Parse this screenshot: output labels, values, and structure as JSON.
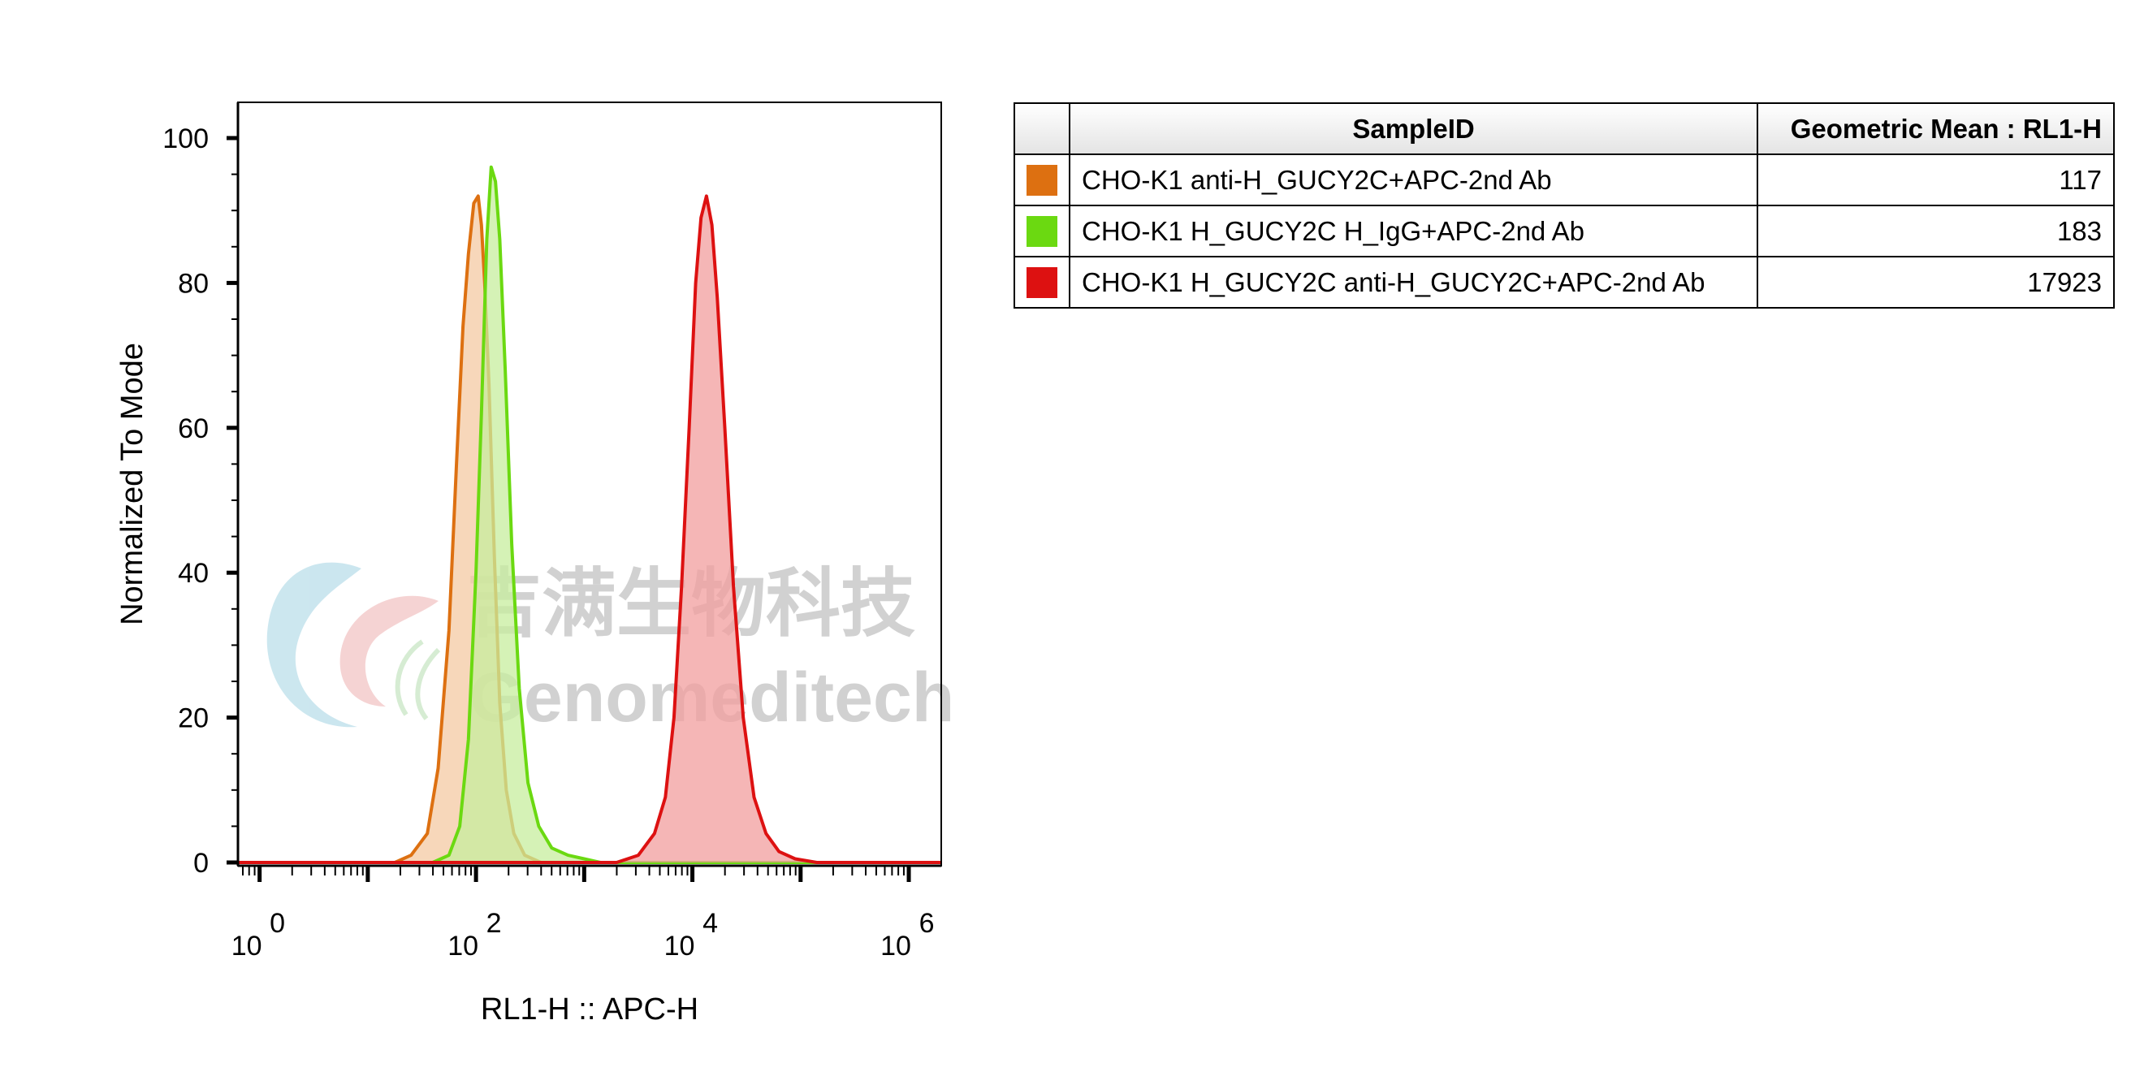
{
  "colors": {
    "orange": "#dd7011",
    "green": "#6bd911",
    "red": "#dd1111"
  },
  "watermark": {
    "cn": "吉满生物科技",
    "en": "Genomeditech"
  },
  "table": {
    "headers": {
      "sample": "SampleID",
      "value": "Geometric Mean : RL1-H"
    },
    "rows": [
      {
        "name": "CHO-K1 anti-H_GUCY2C+APC-2nd Ab",
        "value": "117",
        "color": "#dd7011"
      },
      {
        "name": "CHO-K1 H_GUCY2C H_IgG+APC-2nd Ab",
        "value": "183",
        "color": "#6bd911"
      },
      {
        "name": "CHO-K1 H_GUCY2C anti-H_GUCY2C+APC-2nd Ab",
        "value": "17923",
        "color": "#dd1111"
      }
    ]
  },
  "chart_data": {
    "type": "area",
    "xlabel": "RL1-H :: APC-H",
    "ylabel": "Normalized To Mode",
    "x_scale": "log10",
    "xlim": [
      -0.2,
      6.3
    ],
    "ylim": [
      0,
      100
    ],
    "grid": false,
    "x_ticks": [
      {
        "base": "10",
        "exp": "0",
        "value": 0
      },
      {
        "base": "10",
        "exp": "2",
        "value": 2
      },
      {
        "base": "10",
        "exp": "4",
        "value": 4
      },
      {
        "base": "10",
        "exp": "6",
        "value": 6
      }
    ],
    "y_ticks": [
      "0",
      "20",
      "40",
      "60",
      "80",
      "100"
    ],
    "series": [
      {
        "name": "CHO-K1 anti-H_GUCY2C+APC-2nd Ab",
        "color": "#dd7011",
        "fill": "#f4c9a3",
        "x": [
          -0.2,
          1.25,
          1.4,
          1.55,
          1.65,
          1.75,
          1.82,
          1.88,
          1.93,
          1.98,
          2.02,
          2.05,
          2.08,
          2.12,
          2.17,
          2.22,
          2.28,
          2.35,
          2.45,
          2.6,
          6.3
        ],
        "y": [
          0,
          0,
          1,
          4,
          13,
          32,
          55,
          74,
          84,
          91,
          92,
          88,
          80,
          66,
          42,
          22,
          10,
          4,
          1,
          0,
          0
        ]
      },
      {
        "name": "CHO-K1 H_GUCY2C H_IgG+APC-2nd Ab",
        "color": "#6bd911",
        "fill": "#c7ed9d",
        "x": [
          -0.2,
          1.6,
          1.75,
          1.85,
          1.93,
          2.0,
          2.05,
          2.1,
          2.14,
          2.18,
          2.22,
          2.27,
          2.33,
          2.4,
          2.48,
          2.58,
          2.7,
          2.85,
          3.0,
          3.15,
          6.3
        ],
        "y": [
          0,
          0,
          1,
          5,
          17,
          40,
          62,
          86,
          96,
          94,
          86,
          68,
          44,
          24,
          11,
          5,
          2,
          1,
          0.5,
          0,
          0
        ]
      },
      {
        "name": "CHO-K1 H_GUCY2C anti-H_GUCY2C+APC-2nd Ab",
        "color": "#dd1111",
        "fill": "#f19e9e",
        "x": [
          -0.2,
          3.3,
          3.5,
          3.65,
          3.75,
          3.83,
          3.9,
          3.97,
          4.03,
          4.08,
          4.13,
          4.18,
          4.23,
          4.3,
          4.38,
          4.47,
          4.57,
          4.68,
          4.8,
          4.95,
          5.15,
          6.3
        ],
        "y": [
          0,
          0,
          1,
          4,
          9,
          20,
          38,
          60,
          80,
          89,
          92,
          88,
          78,
          60,
          38,
          20,
          9,
          4,
          1.5,
          0.5,
          0,
          0
        ]
      }
    ]
  }
}
